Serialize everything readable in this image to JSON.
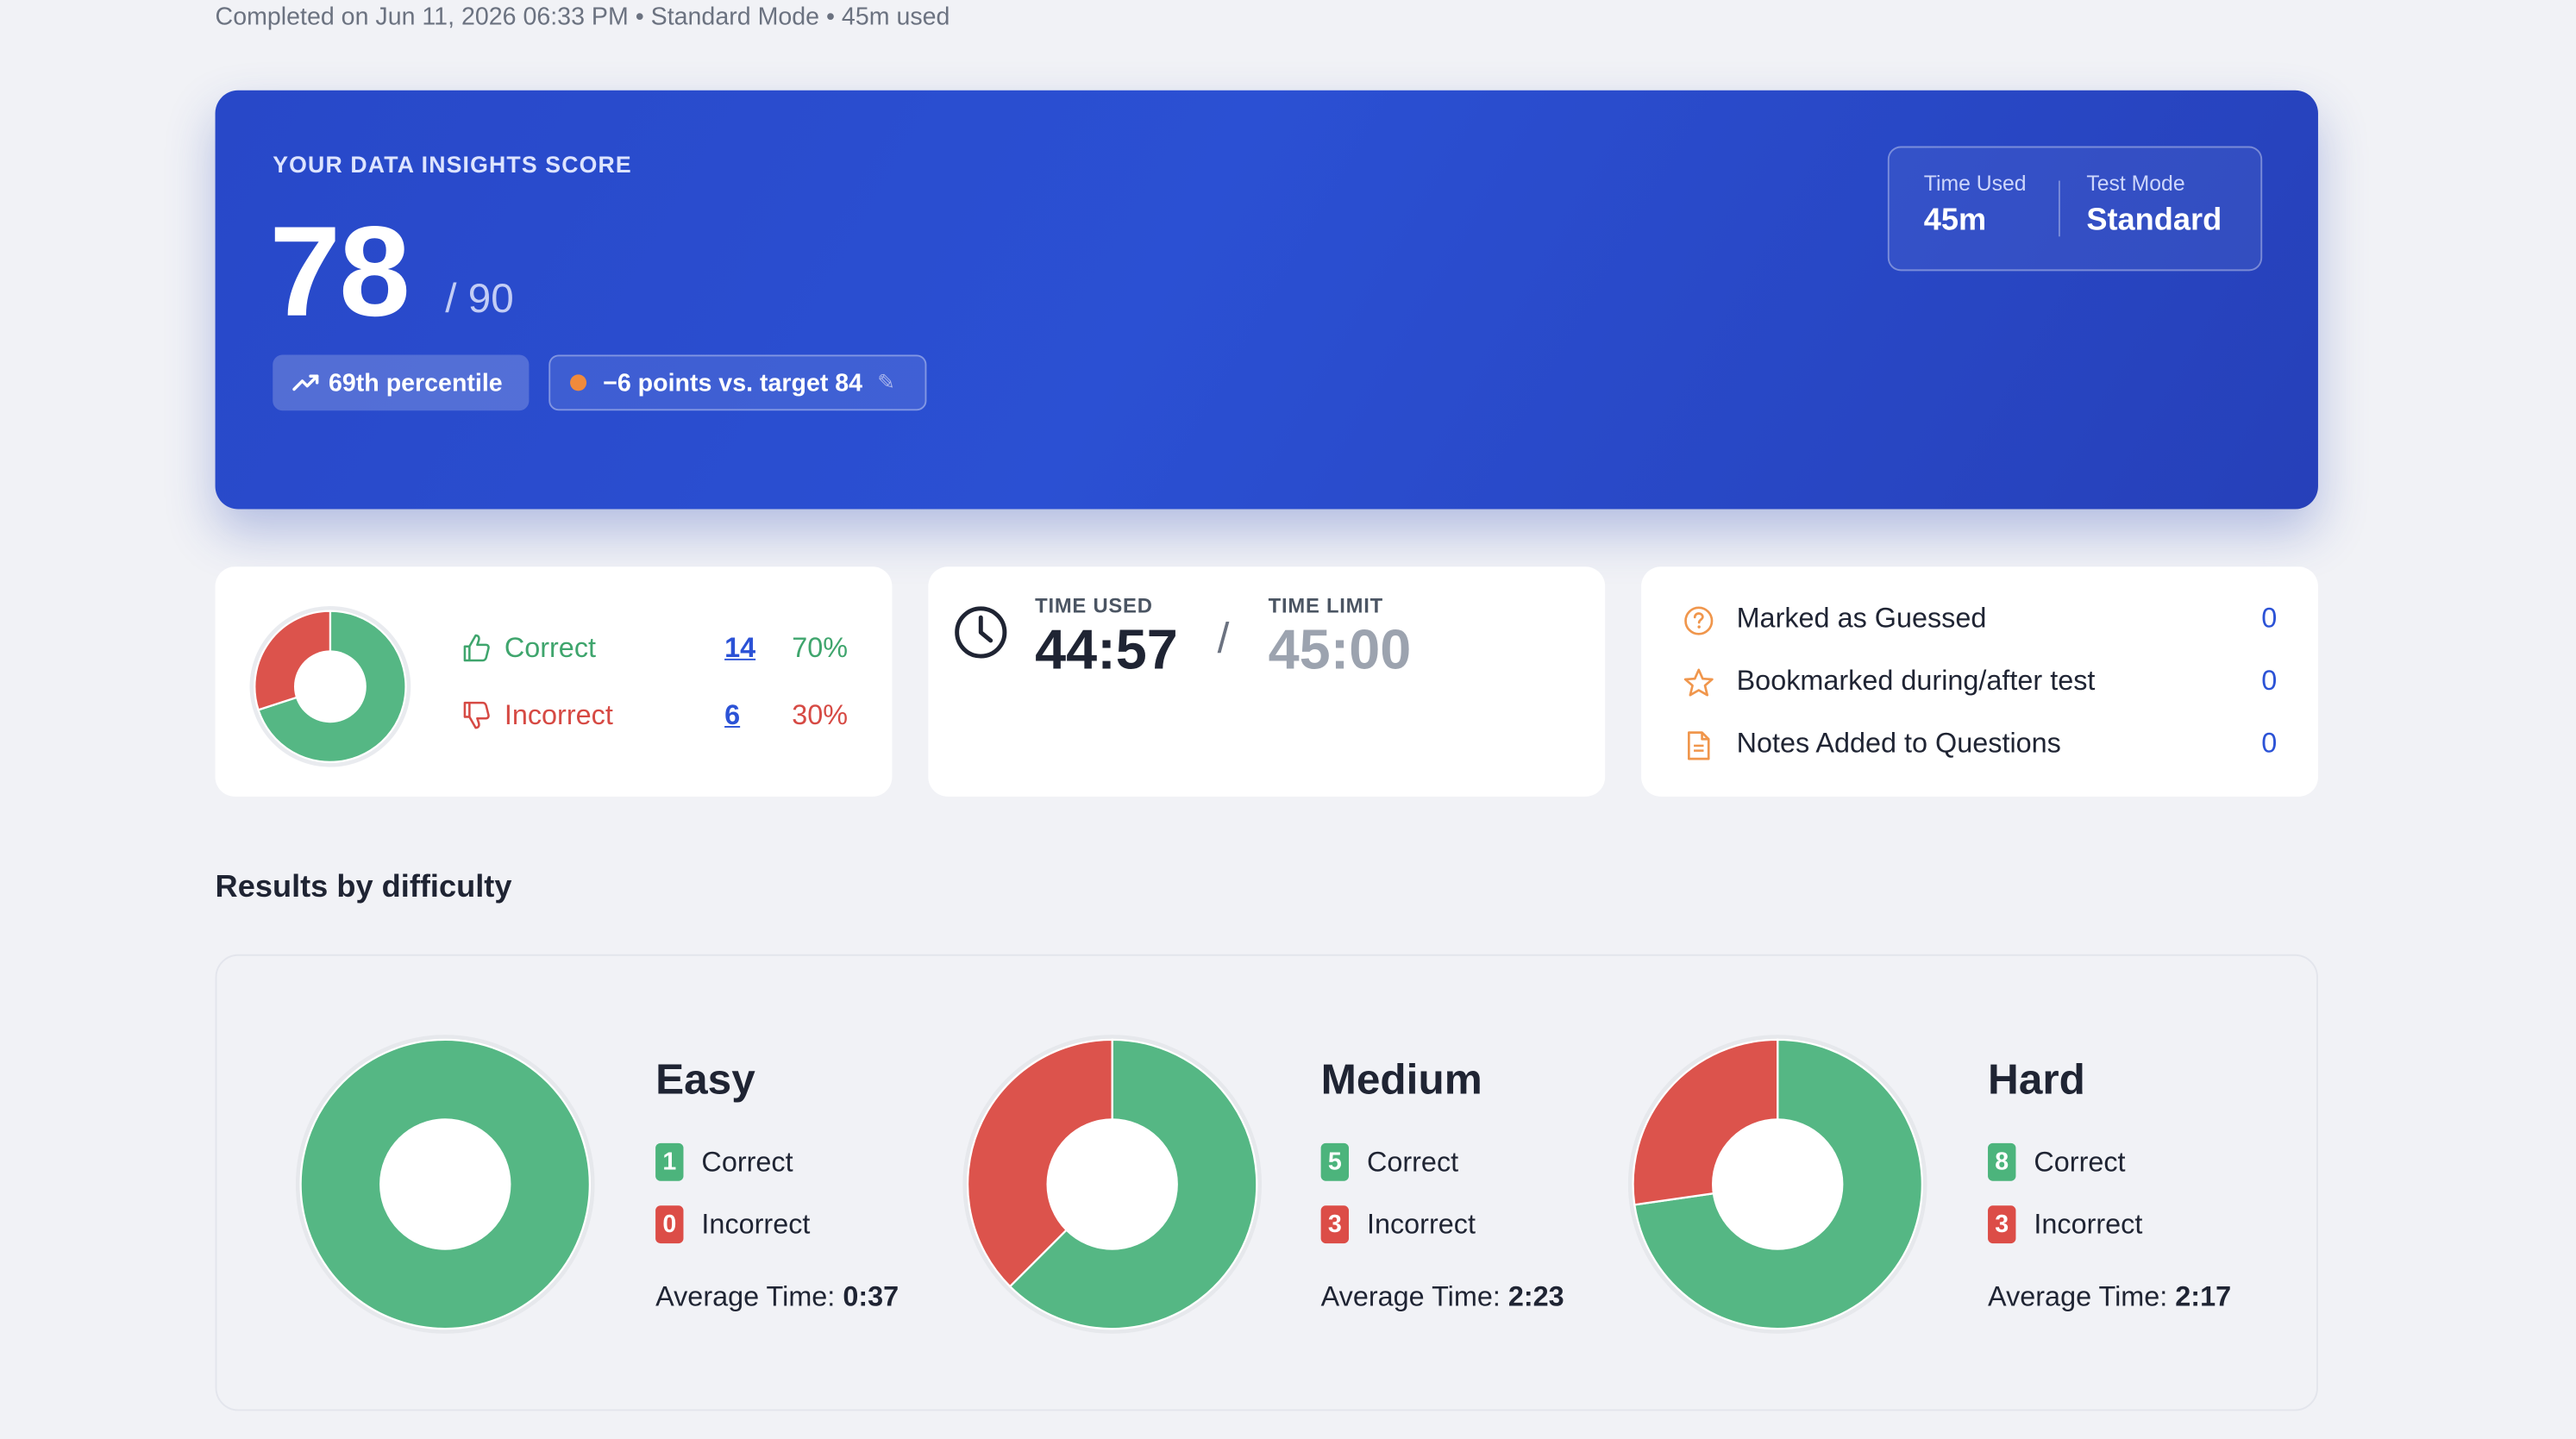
{
  "meta_line": "Completed on Jun 11, 2026 06:33 PM • Standard Mode • 45m used",
  "hero": {
    "label": "YOUR DATA INSIGHTS SCORE",
    "score": "78",
    "max": "/ 90",
    "percentile": "69th percentile",
    "target_text": "−6 points vs. target 84",
    "time_used_label": "Time Used",
    "time_used_value": "45m",
    "mode_label": "Test Mode",
    "mode_value": "Standard"
  },
  "summary": {
    "correct_label": "Correct",
    "correct_count": "14",
    "correct_pct": "70%",
    "incorrect_label": "Incorrect",
    "incorrect_count": "6",
    "incorrect_pct": "30%"
  },
  "timing": {
    "used_label": "TIME USED",
    "used_value": "44:57",
    "slash": "/",
    "limit_label": "TIME LIMIT",
    "limit_value": "45:00"
  },
  "flags": [
    {
      "label": "Marked as Guessed",
      "value": "0",
      "icon": "question-circle-icon"
    },
    {
      "label": "Bookmarked during/after test",
      "value": "0",
      "icon": "star-icon"
    },
    {
      "label": "Notes Added to Questions",
      "value": "0",
      "icon": "note-icon"
    }
  ],
  "section_title": "Results by difficulty",
  "difficulty": [
    {
      "name": "Easy",
      "correct": "1",
      "incorrect": "0",
      "correct_label": "Correct",
      "incorrect_label": "Incorrect",
      "avg_label": "Average Time:",
      "avg_value": "0:37"
    },
    {
      "name": "Medium",
      "correct": "5",
      "incorrect": "3",
      "correct_label": "Correct",
      "incorrect_label": "Incorrect",
      "avg_label": "Average Time:",
      "avg_value": "2:23"
    },
    {
      "name": "Hard",
      "correct": "8",
      "incorrect": "3",
      "correct_label": "Correct",
      "incorrect_label": "Incorrect",
      "avg_label": "Average Time:",
      "avg_value": "2:17"
    }
  ],
  "colors": {
    "correct": "#55b784",
    "incorrect": "#dc534c",
    "accent": "#2b52d6"
  }
}
